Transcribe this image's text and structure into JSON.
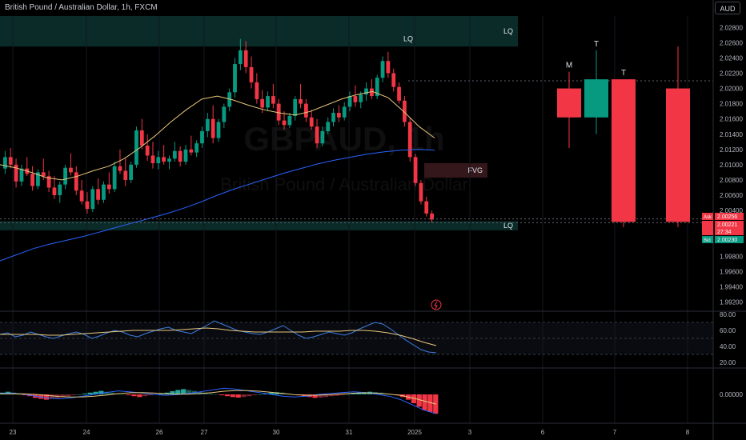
{
  "header": {
    "symbol_title": "British Pound / Australian Dollar, 1h, FXCM",
    "currency": "AUD",
    "watermark_symbol": "GBPAUD, 1h",
    "watermark_name": "British Pound / Australian Dollar"
  },
  "chart_data": {
    "type": "candlestick",
    "price_axis": {
      "min": 1.991,
      "max": 2.0295,
      "ticks": [
        "2.02800",
        "2.02600",
        "2.02400",
        "2.02200",
        "2.02000",
        "2.01800",
        "2.01600",
        "2.01400",
        "2.01200",
        "2.01000",
        "2.00800",
        "2.00600",
        "2.00400",
        "1.99800",
        "1.99600",
        "1.99400",
        "1.99200"
      ]
    },
    "time_axis": {
      "labels": [
        "23",
        "24",
        "26",
        "27",
        "30",
        "31",
        "2025",
        "3",
        "6",
        "7",
        "8"
      ]
    },
    "candles": [
      [
        2.0095,
        2.0118,
        2.0088,
        2.011
      ],
      [
        2.011,
        2.0122,
        2.0095,
        2.01
      ],
      [
        2.01,
        2.0108,
        2.007,
        2.0078
      ],
      [
        2.0078,
        2.01,
        2.0072,
        2.0095
      ],
      [
        2.0095,
        2.011,
        2.0085,
        2.0088
      ],
      [
        2.0088,
        2.0098,
        2.0066,
        2.0072
      ],
      [
        2.0072,
        2.0094,
        2.0068,
        2.009
      ],
      [
        2.009,
        2.0108,
        2.008,
        2.0085
      ],
      [
        2.0085,
        2.0092,
        2.0064,
        2.007
      ],
      [
        2.007,
        2.0085,
        2.0055,
        2.006
      ],
      [
        2.006,
        2.0078,
        2.005,
        2.0074
      ],
      [
        2.0074,
        2.01,
        2.0068,
        2.0096
      ],
      [
        2.0096,
        2.0115,
        2.0086,
        2.009
      ],
      [
        2.009,
        2.0098,
        2.006,
        2.0066
      ],
      [
        2.0066,
        2.008,
        2.0048,
        2.0052
      ],
      [
        2.0052,
        2.0064,
        2.0036,
        2.0042
      ],
      [
        2.0042,
        2.0072,
        2.0038,
        2.0068
      ],
      [
        2.0068,
        2.0082,
        2.0048,
        2.0054
      ],
      [
        2.0054,
        2.0078,
        2.005,
        2.0074
      ],
      [
        2.0074,
        2.009,
        2.0062,
        2.0068
      ],
      [
        2.0068,
        2.0104,
        2.0064,
        2.0098
      ],
      [
        2.0098,
        2.012,
        2.0088,
        2.0092
      ],
      [
        2.0092,
        2.0108,
        2.0072,
        2.008
      ],
      [
        2.008,
        2.0104,
        2.0076,
        2.01
      ],
      [
        2.01,
        2.015,
        2.0096,
        2.0145
      ],
      [
        2.0145,
        2.016,
        2.012,
        2.0125
      ],
      [
        2.0125,
        2.014,
        2.0105,
        2.0112
      ],
      [
        2.0112,
        2.013,
        2.0095,
        2.0102
      ],
      [
        2.0102,
        2.0118,
        2.0094,
        2.011
      ],
      [
        2.011,
        2.0126,
        2.01,
        2.0104
      ],
      [
        2.0104,
        2.0112,
        2.0094,
        2.0108
      ],
      [
        2.0108,
        2.013,
        2.0104,
        2.0118
      ],
      [
        2.0118,
        2.0124,
        2.0098,
        2.0104
      ],
      [
        2.0104,
        2.0126,
        2.01,
        2.012
      ],
      [
        2.012,
        2.0138,
        2.0112,
        2.0116
      ],
      [
        2.0116,
        2.0132,
        2.011,
        2.0128
      ],
      [
        2.0128,
        2.015,
        2.0122,
        2.0144
      ],
      [
        2.0144,
        2.0168,
        2.0136,
        2.016
      ],
      [
        2.016,
        2.0178,
        2.0128,
        2.0135
      ],
      [
        2.0135,
        2.016,
        2.013,
        2.0156
      ],
      [
        2.0156,
        2.018,
        2.0148,
        2.0176
      ],
      [
        2.0176,
        2.02,
        2.017,
        2.0195
      ],
      [
        2.0195,
        2.024,
        2.0188,
        2.0232
      ],
      [
        2.0232,
        2.0265,
        2.0224,
        2.025
      ],
      [
        2.025,
        2.0262,
        2.022,
        2.0228
      ],
      [
        2.0228,
        2.0242,
        2.02,
        2.0208
      ],
      [
        2.0208,
        2.022,
        2.018,
        2.0186
      ],
      [
        2.0186,
        2.0198,
        2.0168,
        2.0175
      ],
      [
        2.0175,
        2.0196,
        2.017,
        2.019
      ],
      [
        2.019,
        2.0206,
        2.0174,
        2.018
      ],
      [
        2.018,
        2.0186,
        2.0152,
        2.0158
      ],
      [
        2.0158,
        2.017,
        2.0146,
        2.0152
      ],
      [
        2.0152,
        2.0168,
        2.0148,
        2.0164
      ],
      [
        2.0164,
        2.019,
        2.0158,
        2.0186
      ],
      [
        2.0186,
        2.0206,
        2.0174,
        2.018
      ],
      [
        2.018,
        2.0186,
        2.0156,
        2.0162
      ],
      [
        2.0162,
        2.0172,
        2.0146,
        2.015
      ],
      [
        2.015,
        2.016,
        2.0122,
        2.0128
      ],
      [
        2.0128,
        2.015,
        2.0124,
        2.0144
      ],
      [
        2.0144,
        2.0162,
        2.014,
        2.0156
      ],
      [
        2.0156,
        2.0174,
        2.015,
        2.0168
      ],
      [
        2.0168,
        2.0178,
        2.0156,
        2.0162
      ],
      [
        2.0162,
        2.0182,
        2.0158,
        2.0176
      ],
      [
        2.0176,
        2.0196,
        2.017,
        2.019
      ],
      [
        2.019,
        2.0204,
        2.0176,
        2.0182
      ],
      [
        2.0182,
        2.0196,
        2.0174,
        2.0192
      ],
      [
        2.0192,
        2.0208,
        2.0184,
        2.02
      ],
      [
        2.02,
        2.0212,
        2.0186,
        2.019
      ],
      [
        2.019,
        2.0218,
        2.0186,
        2.0214
      ],
      [
        2.0214,
        2.0242,
        2.0208,
        2.0236
      ],
      [
        2.0236,
        2.0248,
        2.0214,
        2.022
      ],
      [
        2.022,
        2.0226,
        2.0196,
        2.0202
      ],
      [
        2.0202,
        2.0208,
        2.018,
        2.0184
      ],
      [
        2.0184,
        2.019,
        2.015,
        2.0156
      ],
      [
        2.0156,
        2.0162,
        2.0104,
        2.011
      ],
      [
        2.011,
        2.0114,
        2.0072,
        2.0076
      ],
      [
        2.0076,
        2.008,
        2.0048,
        2.0052
      ],
      [
        2.0052,
        2.0058,
        2.0032,
        2.0036
      ],
      [
        2.0036,
        2.004,
        2.0024,
        2.0028
      ]
    ],
    "ma_fast": [
      2.01,
      2.0096,
      2.009,
      2.0083,
      2.008,
      2.0085,
      2.0092,
      2.0098,
      2.0108,
      2.0122,
      2.0138,
      2.0156,
      2.0172,
      2.0186,
      2.019,
      2.0185,
      2.0178,
      2.0172,
      2.0168,
      2.0165,
      2.017,
      2.0178,
      2.0186,
      2.0192,
      2.0196,
      2.0188,
      2.017,
      2.015,
      2.0135
    ],
    "ma_slow": [
      1.9974,
      1.9982,
      1.999,
      1.9996,
      2.0001,
      2.0006,
      2.0012,
      2.0018,
      2.0024,
      2.003,
      2.0036,
      2.0043,
      2.0051,
      2.006,
      2.0068,
      2.0075,
      2.0082,
      2.0089,
      2.0095,
      2.0101,
      2.0106,
      2.011,
      2.0114,
      2.0117,
      2.0119,
      2.012,
      2.0119
    ],
    "rsi": {
      "ticks": [
        "80.00",
        "60.00",
        "40.00",
        "20.00"
      ],
      "min": 15,
      "max": 82,
      "values": [
        55,
        57,
        52,
        54,
        58,
        55,
        52,
        50,
        53,
        56,
        58,
        55,
        50,
        53,
        57,
        60,
        58,
        54,
        52,
        56,
        59,
        62,
        64,
        60,
        58,
        56,
        61,
        66,
        72,
        68,
        64,
        60,
        58,
        56,
        55,
        58,
        62,
        66,
        60,
        54,
        50,
        52,
        55,
        58,
        56,
        54,
        57,
        62,
        66,
        70,
        68,
        62,
        55,
        48,
        42,
        36,
        33,
        32
      ],
      "ma": [
        55,
        55,
        55,
        55,
        54,
        54,
        55,
        56,
        57,
        58,
        59,
        60,
        60,
        60,
        60,
        61,
        62,
        63,
        62,
        60,
        59,
        58,
        58,
        58,
        58,
        58,
        59,
        59,
        59,
        60,
        60,
        59,
        57,
        54,
        50,
        45,
        41
      ]
    },
    "macd": {
      "zero_label": "0.00000",
      "hist": [
        1,
        1.5,
        1,
        0,
        -0.5,
        -1,
        -2,
        -2.5,
        -3,
        -2.5,
        -2,
        -1.5,
        -1,
        -0.5,
        0,
        0.5,
        1,
        1.5,
        2,
        1.5,
        1,
        0.5,
        0,
        -0.5,
        -1,
        -1.5,
        -1,
        -0.5,
        0,
        0.5,
        1,
        1.8,
        2.5,
        3,
        2.5,
        2,
        1.5,
        1,
        0.5,
        0,
        -0.5,
        -1,
        -1.5,
        -1.8,
        -1.5,
        -1,
        -0.5,
        0,
        0.5,
        1,
        1.2,
        1,
        0.5,
        0,
        -0.5,
        -1,
        -1.5,
        -2,
        -1.8,
        -1.5,
        -1,
        -0.8,
        -0.5,
        0,
        0.5,
        1,
        1.2,
        1.5,
        1.3,
        1,
        0.5,
        0,
        -0.5,
        -1.5,
        -3,
        -5,
        -7,
        -9,
        -10,
        -11
      ],
      "macd_line": [
        0.5,
        0.8,
        0.2,
        -1,
        -2,
        -2.5,
        -2,
        -1,
        0,
        1,
        2,
        1.5,
        0.8,
        0,
        -0.5,
        -0.2,
        0.5,
        1.5,
        2.5,
        3.5,
        3,
        2,
        1,
        0,
        -1,
        -1.5,
        -1,
        0,
        0.5,
        1,
        1.5,
        1,
        0,
        -1,
        -3,
        -6,
        -9,
        -11
      ],
      "signal_line": [
        0.3,
        0.4,
        0.3,
        0,
        -0.6,
        -1.2,
        -1.5,
        -1.4,
        -1,
        -0.4,
        0.4,
        0.9,
        1,
        0.8,
        0.4,
        0.1,
        0.1,
        0.5,
        1,
        1.8,
        2.2,
        2.2,
        1.8,
        1.2,
        0.5,
        -0.2,
        -0.5,
        -0.4,
        -0.1,
        0.3,
        0.7,
        0.9,
        0.7,
        0.2,
        -0.6,
        -2,
        -3.8,
        -5.5
      ]
    },
    "zones": [
      {
        "label": "LQ",
        "kind": "top-liquidity",
        "price_top": 2.0295,
        "price_bottom": 2.0255
      },
      {
        "label": "FVG",
        "kind": "fair-value-gap",
        "price_top": 2.0102,
        "price_bottom": 2.0083
      },
      {
        "label": "LQ",
        "kind": "bottom-liquidity",
        "price_top": 2.0026,
        "price_bottom": 2.0014
      }
    ],
    "peak_label": "LQ",
    "projection_candles": [
      {
        "label": "M",
        "open": 2.02,
        "high": 2.0222,
        "low": 2.0122,
        "close": 2.0162,
        "color": "red"
      },
      {
        "label": "T",
        "open": 2.0162,
        "high": 2.025,
        "low": 2.014,
        "close": 2.0212,
        "color": "teal"
      },
      {
        "label": "T",
        "open": 2.0212,
        "high": 2.0212,
        "low": 2.0018,
        "close": 2.0025,
        "color": "red"
      },
      {
        "label": "",
        "open": 2.02,
        "high": 2.0255,
        "low": 2.0018,
        "close": 2.0025,
        "color": "red"
      }
    ],
    "price_tags": [
      {
        "label": "Ask",
        "value": "2.00256",
        "color": "#f23645"
      },
      {
        "label": "",
        "value": "2.00221",
        "color": "#f23645"
      },
      {
        "label": "",
        "value": "27:34",
        "color": "#f23645"
      },
      {
        "label": "Bid",
        "value": "2.00230",
        "color": "#089981"
      }
    ]
  },
  "colors": {
    "up": "#089981",
    "down": "#f23645",
    "ma_fast": "#e8c77b",
    "ma_slow": "#2962ff",
    "rsi_line": "#3d7de0",
    "rsi_ma": "#e8c77b",
    "zone": "#0e3a35",
    "fvg": "#3a1a1d",
    "background": "#000000",
    "axis_text": "#b2b5be"
  }
}
